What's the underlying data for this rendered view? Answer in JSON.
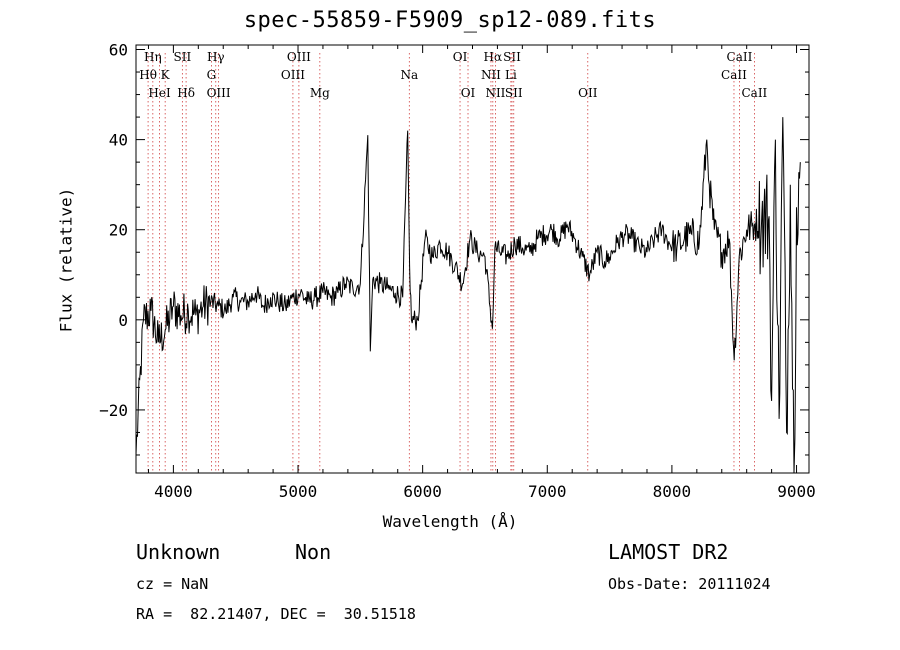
{
  "chart_data": {
    "type": "line",
    "title": "spec-55859-F5909_sp12-089.fits",
    "xlabel": "Wavelength (Å)",
    "ylabel": "Flux (relative)",
    "xlim": [
      3700,
      9100
    ],
    "ylim": [
      -34,
      61
    ],
    "xticks": [
      4000,
      5000,
      6000,
      7000,
      8000,
      9000
    ],
    "yticks": [
      -20,
      0,
      20,
      40,
      60
    ],
    "grid": false,
    "series": [
      {
        "x": [
          3700,
          3760,
          3820,
          3880,
          3940,
          4000,
          4060,
          4120,
          4180,
          4240,
          4300,
          4360,
          4420,
          4480,
          4540,
          4600,
          4660,
          4720,
          4780,
          4840,
          4900,
          4960,
          5020,
          5080,
          5140,
          5200,
          5260,
          5320,
          5380,
          5440,
          5500,
          5560,
          5580,
          5600,
          5660,
          5720,
          5780,
          5840,
          5880,
          5895,
          5910,
          5960,
          6020,
          6080,
          6140,
          6200,
          6260,
          6320,
          6380,
          6440,
          6500,
          6560,
          6580,
          6620,
          6680,
          6740,
          6800,
          6860,
          6920,
          6980,
          7040,
          7100,
          7160,
          7220,
          7280,
          7340,
          7400,
          7460,
          7500,
          7560,
          7620,
          7680,
          7740,
          7800,
          7860,
          7920,
          7980,
          8040,
          8100,
          8160,
          8220,
          8280,
          8300,
          8340,
          8400,
          8460,
          8500,
          8540,
          8600,
          8660,
          8720,
          8780,
          8800,
          8830,
          8860,
          8890,
          8920,
          8950,
          8980,
          9000,
          9030
        ],
        "y": [
          -30,
          0,
          2,
          -5,
          -2,
          3,
          1,
          2,
          1,
          3,
          4,
          3,
          2,
          5,
          4,
          4,
          6,
          3,
          5,
          4,
          3,
          5,
          6,
          4,
          5,
          6,
          5,
          6,
          8,
          7,
          8,
          41,
          -7,
          9,
          8,
          7,
          6,
          5,
          42,
          12,
          0,
          0,
          18,
          14,
          17,
          15,
          12,
          8,
          18,
          15,
          14,
          -2,
          16,
          15,
          14,
          17,
          16,
          15,
          18,
          19,
          20,
          18,
          21,
          18,
          14,
          10,
          15,
          13,
          14,
          17,
          19,
          18,
          16,
          15,
          18,
          20,
          17,
          16,
          18,
          19,
          17,
          40,
          30,
          20,
          15,
          18,
          -9,
          14,
          20,
          21,
          22,
          23,
          -18,
          40,
          -22,
          45,
          -25,
          30,
          -34,
          25,
          35
        ]
      }
    ],
    "lines": [
      {
        "name": "Hη",
        "x": 3835,
        "row": 1
      },
      {
        "name": "Hθ",
        "x": 3797,
        "row": 2
      },
      {
        "name": "K",
        "x": 3934,
        "row": 2
      },
      {
        "name": "HeI",
        "x": 3889,
        "row": 3
      },
      {
        "name": "SII",
        "x": 4072,
        "row": 1
      },
      {
        "name": "Hδ",
        "x": 4102,
        "row": 3
      },
      {
        "name": "Hγ",
        "x": 4340,
        "row": 1
      },
      {
        "name": "G",
        "x": 4305,
        "row": 2
      },
      {
        "name": "OIII",
        "x": 4363,
        "row": 3
      },
      {
        "name": "OIII",
        "x": 5007,
        "row": 1
      },
      {
        "name": "OIII",
        "x": 4959,
        "row": 2
      },
      {
        "name": "Mg",
        "x": 5175,
        "row": 3
      },
      {
        "name": "Na",
        "x": 5893,
        "row": 2
      },
      {
        "name": "OI",
        "x": 6300,
        "row": 1
      },
      {
        "name": "OI",
        "x": 6364,
        "row": 3
      },
      {
        "name": "Hα",
        "x": 6563,
        "row": 1
      },
      {
        "name": "SII",
        "x": 6717,
        "row": 1
      },
      {
        "name": "NII",
        "x": 6548,
        "row": 2
      },
      {
        "name": "Li",
        "x": 6708,
        "row": 2
      },
      {
        "name": "NII",
        "x": 6584,
        "row": 3
      },
      {
        "name": "SII",
        "x": 6731,
        "row": 3
      },
      {
        "name": "OII",
        "x": 7325,
        "row": 3
      },
      {
        "name": "CaII",
        "x": 8542,
        "row": 1
      },
      {
        "name": "CaII",
        "x": 8498,
        "row": 2
      },
      {
        "name": "CaII",
        "x": 8662,
        "row": 3
      }
    ]
  },
  "info": {
    "class": "Unknown",
    "subclass": "Non",
    "survey": "LAMOST DR2",
    "cz": "cz = NaN",
    "obsdate": "Obs-Date: 20111024",
    "radec": "RA =  82.21407, DEC =  30.51518"
  }
}
